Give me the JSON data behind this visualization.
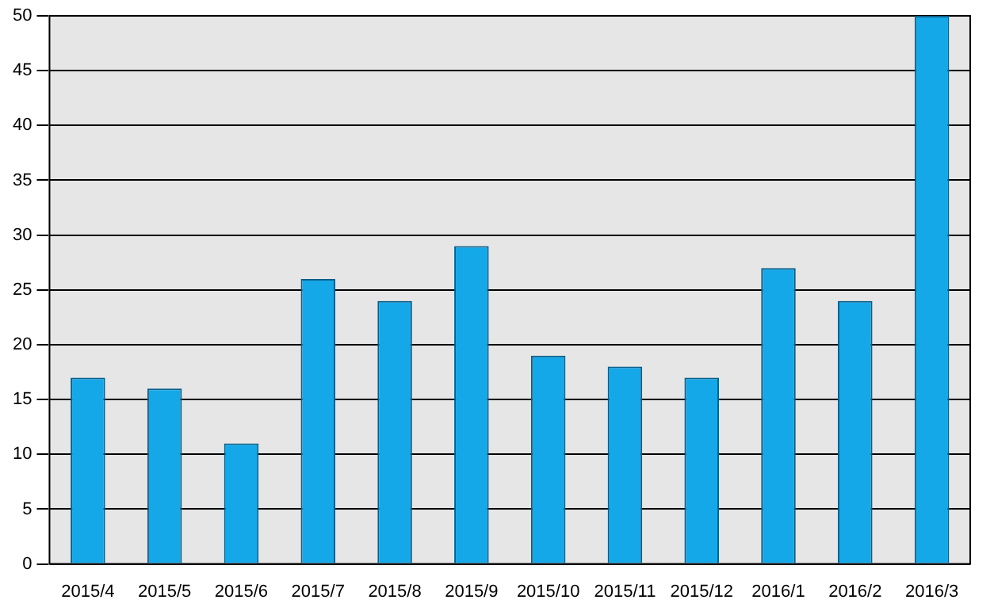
{
  "chart_data": {
    "type": "bar",
    "categories": [
      "2015/4",
      "2015/5",
      "2015/6",
      "2015/7",
      "2015/8",
      "2015/9",
      "2015/10",
      "2015/11",
      "2015/12",
      "2016/1",
      "2016/2",
      "2016/3"
    ],
    "values": [
      17,
      16,
      11,
      26,
      24,
      29,
      19,
      18,
      17,
      27,
      24,
      50
    ],
    "color": "#14a8e8",
    "ylim": [
      0,
      50
    ],
    "yticks": [
      0,
      5,
      10,
      15,
      20,
      25,
      30,
      35,
      40,
      45,
      50
    ],
    "grid": "y"
  }
}
